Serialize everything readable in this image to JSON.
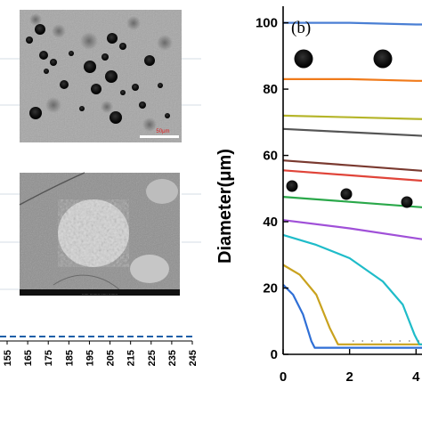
{
  "chart_data": [
    {
      "type": "line",
      "panel_label": "(b)",
      "ylabel": "Diameter(μm)",
      "xlabel": "",
      "ylim": [
        0,
        105
      ],
      "xlim": [
        0,
        6
      ],
      "y_ticks": [
        "0",
        "20",
        "40",
        "60",
        "80",
        "100"
      ],
      "x_ticks": [
        "0",
        "2",
        "4"
      ],
      "series": [
        {
          "color": "#2f6fd6",
          "x": [
            0,
            0.3,
            0.6,
            0.85,
            0.95,
            6
          ],
          "y": [
            21,
            18,
            12,
            4,
            2,
            2
          ]
        },
        {
          "color": "#c9a21e",
          "x": [
            0,
            0.5,
            1.0,
            1.4,
            1.65,
            6
          ],
          "y": [
            27,
            24,
            18,
            8,
            3,
            3
          ]
        },
        {
          "color": "#1fbcc9",
          "x": [
            0,
            1,
            2,
            3,
            3.6,
            3.95,
            4.1,
            6
          ],
          "y": [
            36,
            33,
            29,
            22,
            15,
            6,
            3,
            3
          ]
        },
        {
          "color": "#a050d8",
          "x": [
            0,
            2,
            4,
            6
          ],
          "y": [
            40.5,
            38,
            35,
            32
          ]
        },
        {
          "color": "#2aa84a",
          "x": [
            0,
            2,
            4,
            6
          ],
          "y": [
            47.5,
            46,
            44.5,
            43
          ]
        },
        {
          "color": "#e0453a",
          "x": [
            0,
            2,
            4,
            6
          ],
          "y": [
            55.5,
            54,
            52.5,
            51
          ]
        },
        {
          "color": "#7a3a30",
          "x": [
            0,
            2,
            4,
            6
          ],
          "y": [
            58.5,
            57,
            55.5,
            54
          ]
        },
        {
          "color": "#555555",
          "x": [
            0,
            2,
            4,
            6
          ],
          "y": [
            68,
            67,
            66,
            65
          ]
        },
        {
          "color": "#b5b52a",
          "x": [
            0,
            2,
            4,
            6
          ],
          "y": [
            72,
            71.5,
            71,
            70.5
          ]
        },
        {
          "color": "#f07a1a",
          "x": [
            0,
            2,
            4,
            6
          ],
          "y": [
            83,
            83,
            82.5,
            82.5
          ]
        },
        {
          "color": "#4a7fd4",
          "x": [
            0,
            2,
            4,
            6
          ],
          "y": [
            100,
            100,
            99.5,
            99.5
          ]
        }
      ]
    },
    {
      "type": "line",
      "xlabel": "",
      "ylabel": "",
      "x_ticks": [
        "155",
        "165",
        "175",
        "185",
        "195",
        "205",
        "215",
        "225",
        "235",
        "245"
      ],
      "series": [
        {
          "color": "#1b5fa8",
          "style": "dashed",
          "x": [
            150,
            250
          ],
          "y": [
            0,
            0
          ]
        }
      ]
    }
  ],
  "images": {
    "optical_micrograph": {
      "scale_bar_label": "50μm"
    },
    "sem_micrograph": {
      "info_strip": "...... ......... ...... ........"
    }
  }
}
